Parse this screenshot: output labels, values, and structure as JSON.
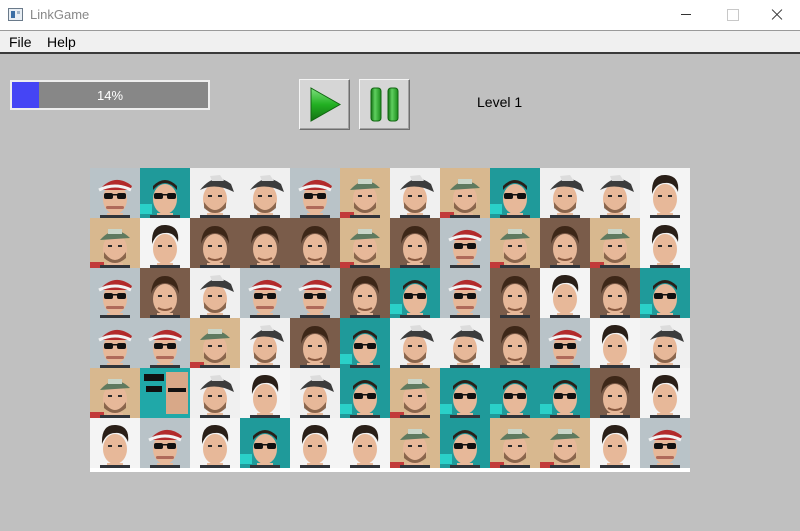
{
  "window": {
    "title": "LinkGame"
  },
  "menu": {
    "file": "File",
    "help": "Help"
  },
  "progress": {
    "value": 0.14,
    "label": "14%"
  },
  "controls": {
    "play_icon": "play-icon",
    "pause_icon": "pause-icon"
  },
  "level": {
    "label": "Level 1"
  },
  "board": {
    "rows": 6,
    "cols": 12,
    "tiles": [
      [
        "sunglasses-cap",
        "sunglasses-poster",
        "cap-beard",
        "cap-beard",
        "sunglasses-cap",
        "green-cap",
        "cap-beard",
        "green-cap",
        "sunglasses-poster",
        "cap-beard",
        "cap-beard",
        "dark-hair"
      ],
      [
        "green-cap",
        "dark-hair",
        "brown-hair",
        "brown-hair",
        "brown-hair",
        "green-cap",
        "brown-hair",
        "sunglasses-cap",
        "green-cap",
        "brown-hair",
        "green-cap",
        "dark-hair"
      ],
      [
        "sunglasses-cap",
        "brown-hair",
        "cap-beard",
        "sunglasses-cap",
        "sunglasses-cap",
        "brown-hair",
        "sunglasses-poster",
        "sunglasses-cap",
        "brown-hair",
        "dark-hair",
        "brown-hair",
        "sunglasses-poster"
      ],
      [
        "sunglasses-cap",
        "sunglasses-cap",
        "green-cap",
        "cap-beard",
        "brown-hair",
        "sunglasses-poster",
        "cap-beard",
        "cap-beard",
        "brown-hair",
        "sunglasses-cap",
        "dark-hair",
        "cap-beard"
      ],
      [
        "green-cap",
        "poster",
        "cap-beard",
        "dark-hair",
        "cap-beard",
        "sunglasses-poster",
        "green-cap",
        "sunglasses-poster",
        "sunglasses-poster",
        "sunglasses-poster",
        "brown-hair",
        "dark-hair"
      ],
      [
        "dark-hair",
        "sunglasses-cap",
        "dark-hair",
        "sunglasses-poster",
        "dark-hair",
        "dark-hair",
        "green-cap",
        "sunglasses-poster",
        "green-cap",
        "green-cap",
        "dark-hair",
        "sunglasses-cap"
      ]
    ]
  },
  "colors": {
    "background": "#c0c0c0",
    "progress_fill": "#4545f5",
    "progress_track": "#878787",
    "play_green": "#22b022",
    "pause_green": "#1f9a1f"
  }
}
